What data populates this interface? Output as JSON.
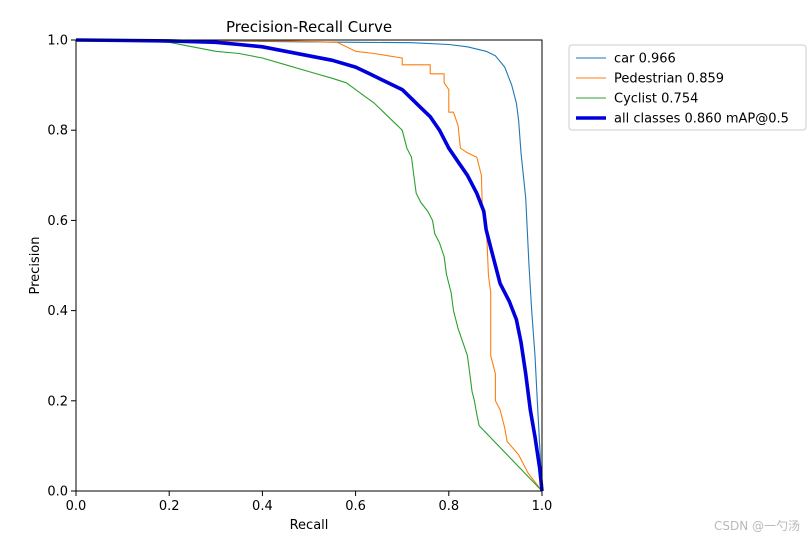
{
  "chart_data": {
    "type": "line",
    "title": "Precision-Recall Curve",
    "xlabel": "Recall",
    "ylabel": "Precision",
    "xlim": [
      0.0,
      1.0
    ],
    "ylim": [
      0.0,
      1.0
    ],
    "xticks": [
      "0.0",
      "0.2",
      "0.4",
      "0.6",
      "0.8",
      "1.0"
    ],
    "yticks": [
      "0.0",
      "0.2",
      "0.4",
      "0.6",
      "0.8",
      "1.0"
    ],
    "grid": false,
    "legend_position": "outside-top-right",
    "series": [
      {
        "name": "car 0.966",
        "color": "#1f77b4",
        "points": [
          [
            0,
            1.0
          ],
          [
            0.2,
            0.999
          ],
          [
            0.4,
            0.997
          ],
          [
            0.6,
            0.995
          ],
          [
            0.72,
            0.994
          ],
          [
            0.8,
            0.99
          ],
          [
            0.84,
            0.985
          ],
          [
            0.88,
            0.975
          ],
          [
            0.9,
            0.965
          ],
          [
            0.92,
            0.94
          ],
          [
            0.935,
            0.9
          ],
          [
            0.945,
            0.86
          ],
          [
            0.95,
            0.82
          ],
          [
            0.955,
            0.75
          ],
          [
            0.965,
            0.65
          ],
          [
            0.972,
            0.5
          ],
          [
            0.978,
            0.4
          ],
          [
            0.985,
            0.3
          ],
          [
            0.99,
            0.2
          ],
          [
            0.995,
            0.1
          ],
          [
            1.0,
            0.0
          ]
        ]
      },
      {
        "name": "Pedestrian 0.859",
        "color": "#ff7f0e",
        "points": [
          [
            0,
            1.0
          ],
          [
            0.2,
            0.999
          ],
          [
            0.45,
            0.998
          ],
          [
            0.56,
            0.995
          ],
          [
            0.58,
            0.985
          ],
          [
            0.6,
            0.975
          ],
          [
            0.64,
            0.97
          ],
          [
            0.67,
            0.965
          ],
          [
            0.7,
            0.96
          ],
          [
            0.7,
            0.945
          ],
          [
            0.76,
            0.945
          ],
          [
            0.76,
            0.925
          ],
          [
            0.79,
            0.925
          ],
          [
            0.79,
            0.905
          ],
          [
            0.8,
            0.89
          ],
          [
            0.8,
            0.84
          ],
          [
            0.81,
            0.84
          ],
          [
            0.82,
            0.81
          ],
          [
            0.825,
            0.76
          ],
          [
            0.84,
            0.75
          ],
          [
            0.86,
            0.74
          ],
          [
            0.87,
            0.7
          ],
          [
            0.872,
            0.62
          ],
          [
            0.88,
            0.6
          ],
          [
            0.885,
            0.48
          ],
          [
            0.89,
            0.44
          ],
          [
            0.89,
            0.3
          ],
          [
            0.895,
            0.28
          ],
          [
            0.9,
            0.26
          ],
          [
            0.9,
            0.2
          ],
          [
            0.91,
            0.18
          ],
          [
            0.92,
            0.14
          ],
          [
            0.925,
            0.11
          ],
          [
            0.95,
            0.08
          ],
          [
            0.97,
            0.04
          ],
          [
            1.0,
            0.0
          ]
        ]
      },
      {
        "name": "Cyclist 0.754",
        "color": "#2ca02c",
        "points": [
          [
            0,
            1.0
          ],
          [
            0.1,
            0.999
          ],
          [
            0.2,
            0.995
          ],
          [
            0.25,
            0.985
          ],
          [
            0.3,
            0.975
          ],
          [
            0.35,
            0.97
          ],
          [
            0.4,
            0.96
          ],
          [
            0.45,
            0.945
          ],
          [
            0.5,
            0.93
          ],
          [
            0.55,
            0.915
          ],
          [
            0.58,
            0.905
          ],
          [
            0.6,
            0.89
          ],
          [
            0.62,
            0.875
          ],
          [
            0.64,
            0.86
          ],
          [
            0.66,
            0.84
          ],
          [
            0.68,
            0.82
          ],
          [
            0.7,
            0.8
          ],
          [
            0.71,
            0.76
          ],
          [
            0.72,
            0.74
          ],
          [
            0.725,
            0.7
          ],
          [
            0.73,
            0.66
          ],
          [
            0.74,
            0.64
          ],
          [
            0.755,
            0.62
          ],
          [
            0.765,
            0.6
          ],
          [
            0.77,
            0.57
          ],
          [
            0.78,
            0.55
          ],
          [
            0.79,
            0.52
          ],
          [
            0.795,
            0.48
          ],
          [
            0.8,
            0.46
          ],
          [
            0.805,
            0.44
          ],
          [
            0.81,
            0.4
          ],
          [
            0.82,
            0.36
          ],
          [
            0.83,
            0.33
          ],
          [
            0.84,
            0.3
          ],
          [
            0.845,
            0.26
          ],
          [
            0.85,
            0.22
          ],
          [
            0.855,
            0.2
          ],
          [
            0.86,
            0.17
          ],
          [
            0.865,
            0.145
          ],
          [
            1.0,
            0.0
          ]
        ]
      },
      {
        "name": "all classes 0.860 mAP@0.5",
        "color": "#0000dd",
        "points": [
          [
            0,
            1.0
          ],
          [
            0.2,
            0.998
          ],
          [
            0.3,
            0.995
          ],
          [
            0.35,
            0.99
          ],
          [
            0.4,
            0.985
          ],
          [
            0.45,
            0.975
          ],
          [
            0.5,
            0.965
          ],
          [
            0.55,
            0.955
          ],
          [
            0.6,
            0.94
          ],
          [
            0.63,
            0.925
          ],
          [
            0.66,
            0.91
          ],
          [
            0.7,
            0.89
          ],
          [
            0.72,
            0.87
          ],
          [
            0.74,
            0.85
          ],
          [
            0.76,
            0.83
          ],
          [
            0.78,
            0.8
          ],
          [
            0.8,
            0.76
          ],
          [
            0.82,
            0.73
          ],
          [
            0.84,
            0.7
          ],
          [
            0.86,
            0.66
          ],
          [
            0.875,
            0.62
          ],
          [
            0.88,
            0.58
          ],
          [
            0.89,
            0.54
          ],
          [
            0.9,
            0.5
          ],
          [
            0.91,
            0.46
          ],
          [
            0.93,
            0.42
          ],
          [
            0.945,
            0.38
          ],
          [
            0.955,
            0.33
          ],
          [
            0.965,
            0.26
          ],
          [
            0.975,
            0.18
          ],
          [
            0.985,
            0.12
          ],
          [
            0.995,
            0.05
          ],
          [
            1.0,
            0.0
          ]
        ]
      }
    ]
  },
  "watermark": "CSDN @一勺汤"
}
